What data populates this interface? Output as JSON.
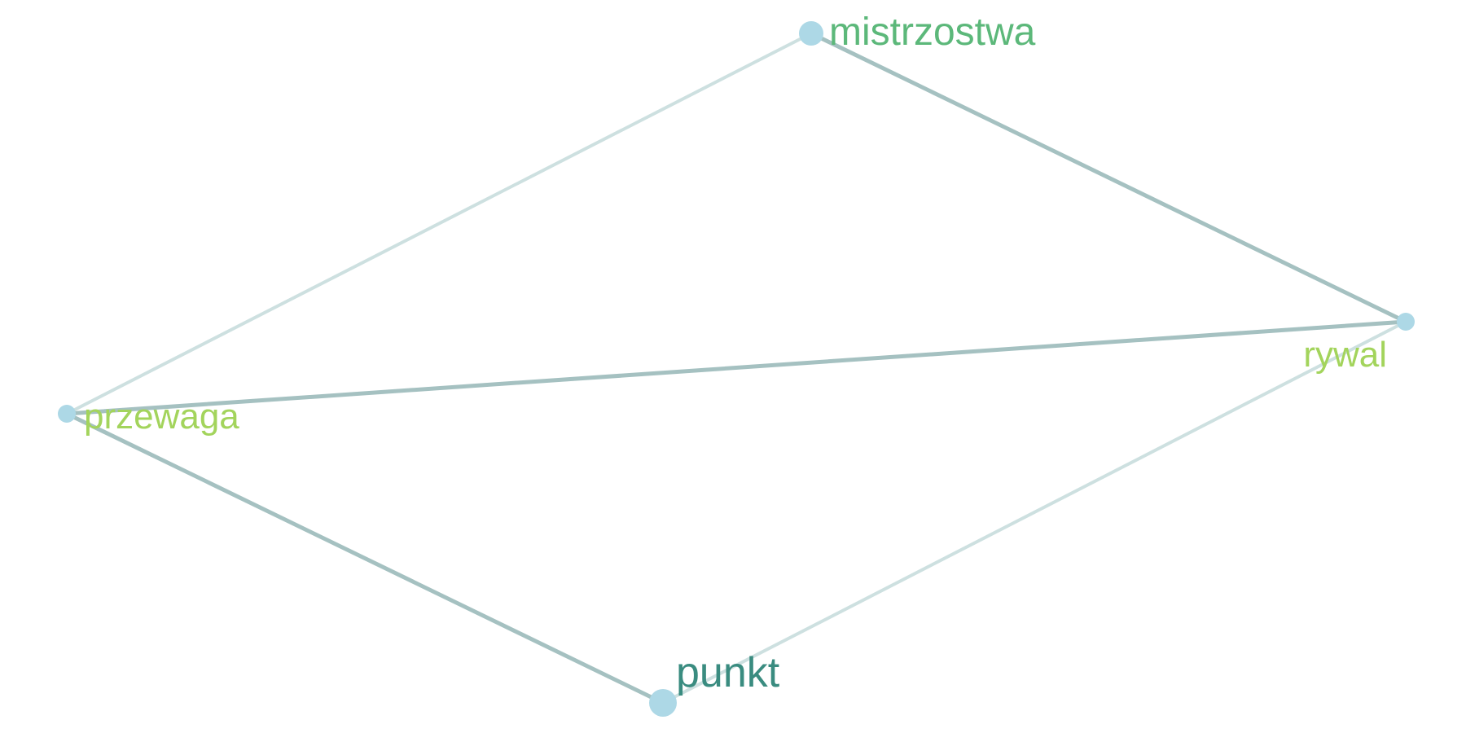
{
  "graph": {
    "colors": {
      "node_fill": "#add8e6",
      "edge_strong": "#a5c1c1",
      "edge_light": "#cde0e0"
    },
    "nodes": [
      {
        "id": "mistrzostwa",
        "label": "mistrzostwa",
        "color": "#5cb87a"
      },
      {
        "id": "rywal",
        "label": "rywal",
        "color": "#a3d45c"
      },
      {
        "id": "przewaga",
        "label": "przewaga",
        "color": "#a3d45c"
      },
      {
        "id": "punkt",
        "label": "punkt",
        "color": "#3a8c80"
      }
    ],
    "edges": [
      {
        "source": "mistrzostwa",
        "target": "przewaga",
        "strength": "weak"
      },
      {
        "source": "mistrzostwa",
        "target": "rywal",
        "strength": "strong"
      },
      {
        "source": "przewaga",
        "target": "rywal",
        "strength": "strong"
      },
      {
        "source": "przewaga",
        "target": "punkt",
        "strength": "strong"
      },
      {
        "source": "punkt",
        "target": "rywal",
        "strength": "weak"
      }
    ]
  }
}
